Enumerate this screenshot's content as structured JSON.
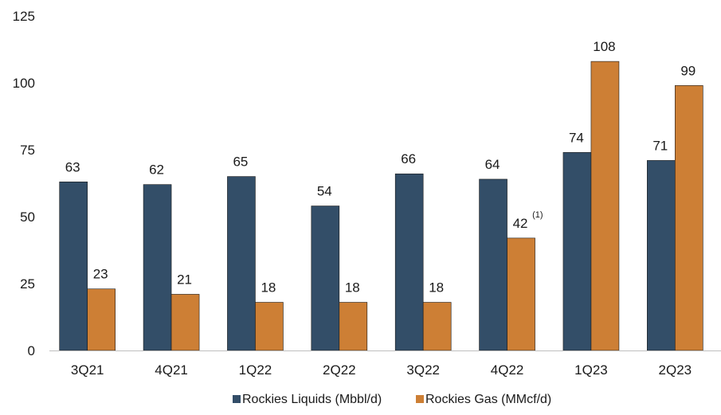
{
  "chart_data": {
    "type": "bar",
    "categories": [
      "3Q21",
      "4Q21",
      "1Q22",
      "2Q22",
      "3Q22",
      "4Q22",
      "1Q23",
      "2Q23"
    ],
    "series": [
      {
        "name": "Rockies Liquids (Mbbl/d)",
        "color": "#334E68",
        "values": [
          63,
          62,
          65,
          54,
          66,
          64,
          74,
          71
        ],
        "labels": [
          "63",
          "62",
          "65",
          "54",
          "66",
          "64",
          "74",
          "71"
        ]
      },
      {
        "name": "Rockies Gas (MMcf/d)",
        "color": "#CD7F35",
        "values": [
          23,
          21,
          18,
          18,
          18,
          42,
          108,
          99
        ],
        "labels": [
          "23",
          "21",
          "18",
          "18",
          "18",
          "42",
          "108",
          "99"
        ]
      }
    ],
    "annotations": [
      {
        "series_index": 1,
        "category_index": 5,
        "text": "(1)"
      }
    ],
    "title": "",
    "xlabel": "",
    "ylabel": "",
    "ylim": [
      0,
      125
    ],
    "yticks": [
      "0",
      "25",
      "50",
      "75",
      "100",
      "125"
    ],
    "grid": false,
    "legend_position": "bottom"
  }
}
